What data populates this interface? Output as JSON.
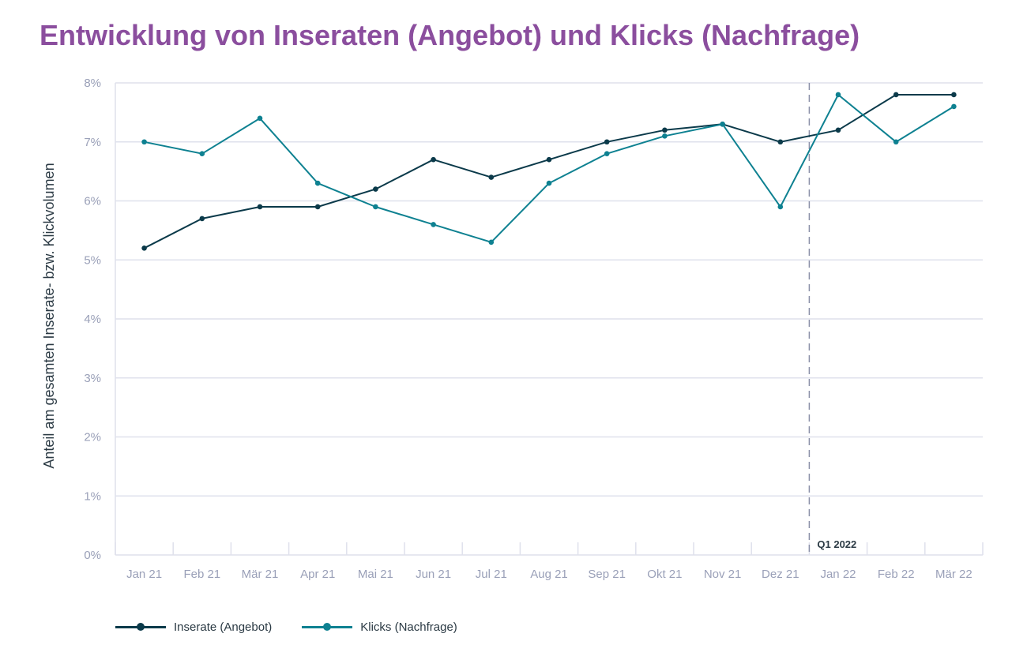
{
  "title": "Entwicklung von Inseraten (Angebot) und Klicks (Nachfrage)",
  "colors": {
    "title": "#8b4e9e",
    "inserate": "#0b3a4a",
    "klicks": "#0e8191",
    "grid": "#dfe1ec",
    "ticks": "#9aa0b8"
  },
  "chart_data": {
    "type": "line",
    "title": "Entwicklung von Inseraten (Angebot) und Klicks (Nachfrage)",
    "xlabel": "",
    "ylabel": "Anteil am gesamten Inserate- bzw. Klickvolumen",
    "categories": [
      "Jan 21",
      "Feb 21",
      "Mär 21",
      "Apr 21",
      "Mai 21",
      "Jun 21",
      "Jul 21",
      "Aug 21",
      "Sep 21",
      "Okt 21",
      "Nov 21",
      "Dez 21",
      "Jan 22",
      "Feb 22",
      "Mär 22"
    ],
    "yticks": [
      "0%",
      "1%",
      "2%",
      "3%",
      "4%",
      "5%",
      "6%",
      "7%",
      "8%"
    ],
    "ylim": [
      0,
      8
    ],
    "grid": true,
    "series": [
      {
        "name": "Inserate (Angebot)",
        "color": "#0b3a4a",
        "values": [
          5.2,
          5.7,
          5.9,
          5.9,
          6.2,
          6.7,
          6.4,
          6.7,
          7.0,
          7.2,
          7.3,
          7.0,
          7.2,
          7.8,
          7.8
        ]
      },
      {
        "name": "Klicks (Nachfrage)",
        "color": "#0e8191",
        "values": [
          7.0,
          6.8,
          7.4,
          6.3,
          5.9,
          5.6,
          5.3,
          6.3,
          6.8,
          7.1,
          7.3,
          5.9,
          7.8,
          7.0,
          7.6
        ]
      }
    ],
    "annotations": [
      {
        "label": "Q1 2022",
        "between": [
          "Dez 21",
          "Jan 22"
        ],
        "style": "dashed-vertical-line"
      }
    ],
    "legend": "bottom-left"
  }
}
